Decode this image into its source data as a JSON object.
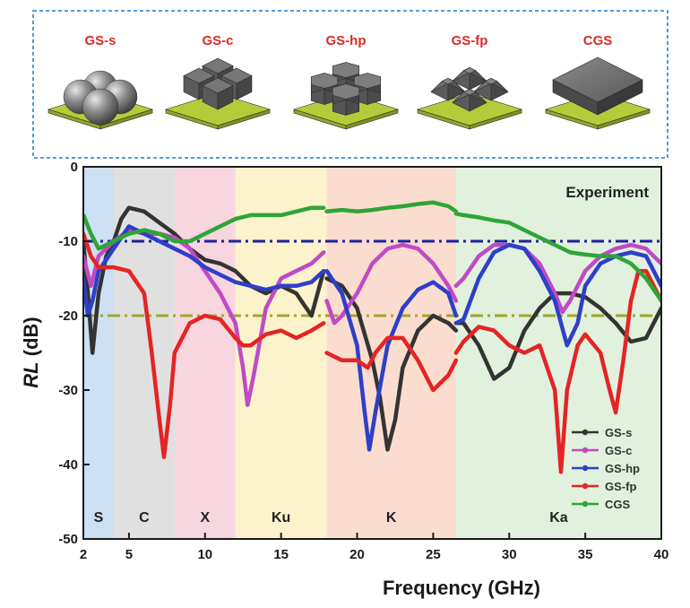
{
  "structures": [
    {
      "label": "GS-s",
      "shape": "spheres"
    },
    {
      "label": "GS-c",
      "shape": "cubes"
    },
    {
      "label": "GS-hp",
      "shape": "hexagonal-prisms"
    },
    {
      "label": "GS-fp",
      "shape": "frustum-pyramids"
    },
    {
      "label": "CGS",
      "shape": "slab"
    }
  ],
  "colors": {
    "header_label": "#d92b2b",
    "header_border": "#3c8fd0",
    "plate": "#b5cc3a"
  },
  "chart_data": {
    "type": "line",
    "xlabel": "Frequency (GHz)",
    "ylabel_italic": "RL",
    "ylabel_unit": " (dB)",
    "xlim": [
      2,
      40
    ],
    "ylim": [
      -50,
      0
    ],
    "xticks": [
      2,
      5,
      10,
      15,
      20,
      25,
      30,
      35,
      40
    ],
    "yticks": [
      0,
      -10,
      -20,
      -30,
      -40,
      -50
    ],
    "annotation": "Experiment",
    "legend_position": "bottom-right",
    "bands": [
      {
        "label": "S",
        "x0": 2,
        "x1": 4,
        "color": "#bcd6ef"
      },
      {
        "label": "C",
        "x0": 4,
        "x1": 8,
        "color": "#d6d6d6"
      },
      {
        "label": "X",
        "x0": 8,
        "x1": 12,
        "color": "#f6c8d4"
      },
      {
        "label": "Ku",
        "x0": 12,
        "x1": 18,
        "color": "#fbeebb"
      },
      {
        "label": "K",
        "x0": 18,
        "x1": 26.5,
        "color": "#f9d2bf"
      },
      {
        "label": "Ka",
        "x0": 26.5,
        "x1": 40,
        "color": "#d7ecd1"
      }
    ],
    "reference_lines": [
      {
        "y": -10,
        "color": "#20209a",
        "style": "dash-dot"
      },
      {
        "y": -20,
        "color": "#9fa82a",
        "style": "dash-dot"
      }
    ],
    "series": [
      {
        "name": "GS-s",
        "color": "#333333",
        "segments": [
          [
            [
              2,
              -10
            ],
            [
              2.3,
              -17
            ],
            [
              2.6,
              -25
            ],
            [
              3,
              -17
            ],
            [
              3.5,
              -12
            ],
            [
              4,
              -10
            ],
            [
              4.5,
              -7
            ],
            [
              5,
              -5.5
            ],
            [
              6,
              -6
            ],
            [
              7,
              -7.5
            ],
            [
              8,
              -9
            ],
            [
              9,
              -11
            ],
            [
              10,
              -12.5
            ],
            [
              11,
              -13
            ],
            [
              12,
              -14
            ],
            [
              13,
              -16
            ],
            [
              14,
              -17
            ],
            [
              15,
              -16
            ],
            [
              16,
              -17
            ],
            [
              17,
              -20
            ],
            [
              17.8,
              -14
            ]
          ],
          [
            [
              18,
              -15
            ],
            [
              19,
              -16
            ],
            [
              20,
              -19
            ],
            [
              21,
              -26
            ],
            [
              21.5,
              -31
            ],
            [
              22,
              -38
            ],
            [
              22.5,
              -34
            ],
            [
              23,
              -27
            ],
            [
              24,
              -22
            ],
            [
              25,
              -20
            ],
            [
              26,
              -21
            ],
            [
              26.5,
              -22
            ]
          ],
          [
            [
              26.5,
              -21
            ],
            [
              27,
              -21
            ],
            [
              28,
              -24
            ],
            [
              29,
              -28.5
            ],
            [
              30,
              -27
            ],
            [
              31,
              -22
            ],
            [
              32,
              -19
            ],
            [
              33,
              -17
            ],
            [
              34,
              -17
            ],
            [
              35,
              -17.5
            ],
            [
              36,
              -19
            ],
            [
              37,
              -21
            ],
            [
              38,
              -23.5
            ],
            [
              39,
              -23
            ],
            [
              40,
              -19
            ]
          ]
        ]
      },
      {
        "name": "GS-c",
        "color": "#c04ac4",
        "segments": [
          [
            [
              2,
              -12
            ],
            [
              2.5,
              -16
            ],
            [
              3,
              -12
            ],
            [
              4,
              -10
            ],
            [
              5,
              -8.5
            ],
            [
              6,
              -9
            ],
            [
              7,
              -9
            ],
            [
              8,
              -9.5
            ],
            [
              9,
              -11
            ],
            [
              10,
              -14
            ],
            [
              11,
              -17
            ],
            [
              12,
              -21
            ],
            [
              12.5,
              -27
            ],
            [
              12.8,
              -32
            ],
            [
              13.2,
              -28
            ],
            [
              14,
              -19
            ],
            [
              15,
              -15
            ],
            [
              16,
              -14
            ],
            [
              17,
              -13
            ],
            [
              17.8,
              -11.5
            ]
          ],
          [
            [
              18,
              -18
            ],
            [
              18.5,
              -21
            ],
            [
              19,
              -20
            ],
            [
              20,
              -17
            ],
            [
              21,
              -13
            ],
            [
              22,
              -11
            ],
            [
              23,
              -10.5
            ],
            [
              24,
              -11
            ],
            [
              25,
              -13
            ],
            [
              26,
              -16
            ],
            [
              26.5,
              -18
            ]
          ],
          [
            [
              26.5,
              -16
            ],
            [
              27,
              -15
            ],
            [
              28,
              -12
            ],
            [
              29,
              -10.5
            ],
            [
              30,
              -10.5
            ],
            [
              31,
              -11
            ],
            [
              32,
              -13
            ],
            [
              33,
              -17
            ],
            [
              33.5,
              -19.5
            ],
            [
              34,
              -18
            ],
            [
              35,
              -14
            ],
            [
              36,
              -12
            ],
            [
              37,
              -11
            ],
            [
              38,
              -10.5
            ],
            [
              39,
              -11
            ],
            [
              40,
              -13
            ]
          ]
        ]
      },
      {
        "name": "GS-hp",
        "color": "#2e3fc8",
        "segments": [
          [
            [
              2,
              -15
            ],
            [
              2.3,
              -20
            ],
            [
              2.6,
              -18
            ],
            [
              3,
              -14
            ],
            [
              4,
              -11
            ],
            [
              5,
              -8
            ],
            [
              6,
              -9
            ],
            [
              7,
              -10
            ],
            [
              8,
              -11
            ],
            [
              9,
              -12
            ],
            [
              10,
              -13.5
            ],
            [
              11,
              -14.5
            ],
            [
              12,
              -15.5
            ],
            [
              13,
              -16
            ],
            [
              14,
              -16.5
            ],
            [
              15,
              -16
            ],
            [
              16,
              -16
            ],
            [
              17,
              -15.5
            ],
            [
              17.8,
              -14
            ]
          ],
          [
            [
              18,
              -14
            ],
            [
              19,
              -17
            ],
            [
              20,
              -24
            ],
            [
              20.5,
              -33
            ],
            [
              20.8,
              -38
            ],
            [
              21.2,
              -33
            ],
            [
              22,
              -24
            ],
            [
              23,
              -19
            ],
            [
              24,
              -16.5
            ],
            [
              25,
              -15.5
            ],
            [
              26,
              -17
            ],
            [
              26.5,
              -20
            ]
          ],
          [
            [
              26.5,
              -21
            ],
            [
              27,
              -20.5
            ],
            [
              28,
              -15
            ],
            [
              29,
              -11.5
            ],
            [
              30,
              -10.5
            ],
            [
              31,
              -11
            ],
            [
              32,
              -14
            ],
            [
              33,
              -18
            ],
            [
              33.8,
              -24
            ],
            [
              34.5,
              -21
            ],
            [
              35,
              -16
            ],
            [
              36,
              -13
            ],
            [
              37,
              -12
            ],
            [
              38,
              -11.5
            ],
            [
              39,
              -12
            ],
            [
              40,
              -16
            ]
          ]
        ]
      },
      {
        "name": "GS-fp",
        "color": "#e42424",
        "segments": [
          [
            [
              2,
              -9
            ],
            [
              2.5,
              -12
            ],
            [
              3,
              -13.5
            ],
            [
              4,
              -13.5
            ],
            [
              5,
              -14
            ],
            [
              6,
              -17
            ],
            [
              6.5,
              -25
            ],
            [
              7,
              -34
            ],
            [
              7.3,
              -39
            ],
            [
              7.7,
              -32
            ],
            [
              8,
              -25
            ],
            [
              9,
              -21
            ],
            [
              10,
              -20
            ],
            [
              11,
              -20.5
            ],
            [
              12,
              -23
            ],
            [
              12.5,
              -24
            ],
            [
              13,
              -24
            ],
            [
              14,
              -22.5
            ],
            [
              15,
              -22
            ],
            [
              16,
              -23
            ],
            [
              17,
              -22
            ],
            [
              17.8,
              -21
            ]
          ],
          [
            [
              18,
              -25
            ],
            [
              19,
              -26
            ],
            [
              20,
              -26
            ],
            [
              20.7,
              -27
            ],
            [
              21.2,
              -25
            ],
            [
              22,
              -23
            ],
            [
              23,
              -23
            ],
            [
              24,
              -26
            ],
            [
              25,
              -30
            ],
            [
              26,
              -28
            ],
            [
              26.5,
              -26
            ]
          ],
          [
            [
              26.5,
              -25
            ],
            [
              27,
              -23.5
            ],
            [
              28,
              -21.5
            ],
            [
              29,
              -22
            ],
            [
              30,
              -24
            ],
            [
              31,
              -25
            ],
            [
              32,
              -24
            ],
            [
              33,
              -30
            ],
            [
              33.4,
              -41
            ],
            [
              33.8,
              -30
            ],
            [
              34.5,
              -24
            ],
            [
              35,
              -22.5
            ],
            [
              36,
              -25
            ],
            [
              36.6,
              -30
            ],
            [
              37,
              -33
            ],
            [
              37.5,
              -26
            ],
            [
              38,
              -18
            ],
            [
              38.5,
              -14
            ],
            [
              39,
              -14
            ],
            [
              40,
              -18
            ]
          ]
        ]
      },
      {
        "name": "CGS",
        "color": "#2ea536",
        "segments": [
          [
            [
              2,
              -6.5
            ],
            [
              2.5,
              -9
            ],
            [
              3,
              -11
            ],
            [
              4,
              -10
            ],
            [
              5,
              -9
            ],
            [
              6,
              -8.5
            ],
            [
              7,
              -9
            ],
            [
              8,
              -10
            ],
            [
              9,
              -10
            ],
            [
              10,
              -9
            ],
            [
              11,
              -8
            ],
            [
              12,
              -7
            ],
            [
              13,
              -6.5
            ],
            [
              14,
              -6.5
            ],
            [
              15,
              -6.5
            ],
            [
              16,
              -6
            ],
            [
              17,
              -5.5
            ],
            [
              17.8,
              -5.5
            ]
          ],
          [
            [
              18,
              -6
            ],
            [
              19,
              -5.8
            ],
            [
              20,
              -6
            ],
            [
              21,
              -5.8
            ],
            [
              22,
              -5.5
            ],
            [
              23,
              -5.3
            ],
            [
              24,
              -5
            ],
            [
              25,
              -4.8
            ],
            [
              26,
              -5.3
            ],
            [
              26.5,
              -6
            ]
          ],
          [
            [
              26.5,
              -6.3
            ],
            [
              27,
              -6.5
            ],
            [
              28,
              -6.8
            ],
            [
              29,
              -7.2
            ],
            [
              30,
              -7.5
            ],
            [
              31,
              -8.5
            ],
            [
              32,
              -9.5
            ],
            [
              33,
              -10.5
            ],
            [
              34,
              -11.5
            ],
            [
              35,
              -11.8
            ],
            [
              36,
              -12
            ],
            [
              37,
              -12
            ],
            [
              38,
              -13
            ],
            [
              39,
              -15
            ],
            [
              40,
              -18
            ]
          ]
        ]
      }
    ]
  }
}
